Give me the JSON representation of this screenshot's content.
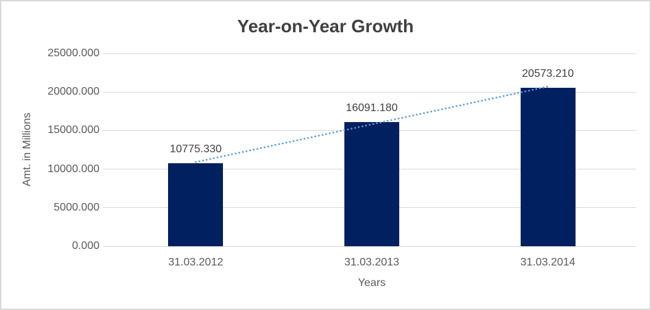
{
  "chart_data": {
    "type": "bar",
    "title": "Year-on-Year Growth",
    "xlabel": "Years",
    "ylabel": "Amt. in Millions",
    "categories": [
      "31.03.2012",
      "31.03.2013",
      "31.03.2014"
    ],
    "values": [
      10775.33,
      16091.18,
      20573.21
    ],
    "data_labels": [
      "10775.330",
      "16091.180",
      "20573.210"
    ],
    "ylim": [
      0,
      25000
    ],
    "ytick_step": 5000,
    "ytick_labels": [
      "0.000",
      "5000.000",
      "10000.000",
      "15000.000",
      "20000.000",
      "25000.000"
    ],
    "grid": true,
    "legend": "none",
    "trendline": {
      "type": "linear",
      "style": "dotted"
    },
    "colors": {
      "bar": "#002060",
      "trendline": "#5B9BD5",
      "gridline": "#D9D9D9",
      "axis_text": "#595959",
      "data_label_text": "#404040",
      "title_text": "#404040",
      "border": "#D9D9D9",
      "background": "#FFFFFF"
    }
  }
}
